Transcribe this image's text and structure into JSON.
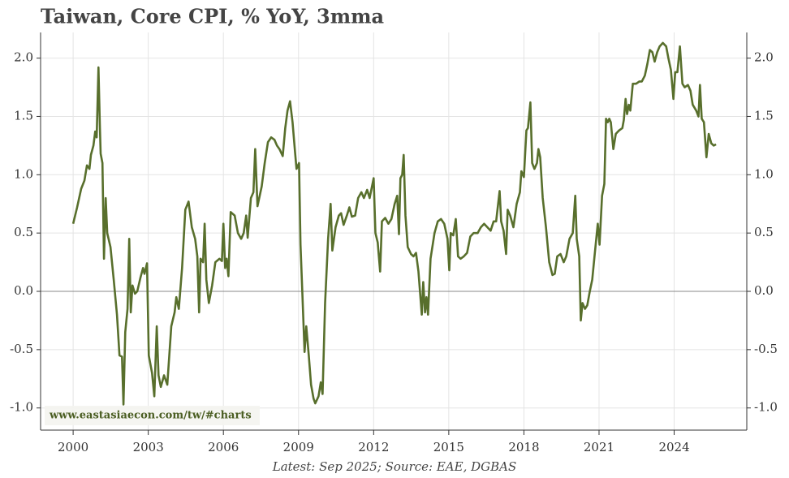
{
  "chart_data": {
    "type": "line",
    "title": "Taiwan, Core CPI, % YoY, 3mma",
    "caption": "Latest: Sep 2025; Source: EAE, DGBAS",
    "annotation": "www.eastasiaecon.com/tw/#charts",
    "grid": true,
    "xlim": [
      1998.7,
      2026.9
    ],
    "xticks": [
      2000,
      2003,
      2006,
      2009,
      2012,
      2015,
      2018,
      2021,
      2024
    ],
    "ylim": [
      -1.19,
      2.22
    ],
    "yticks": [
      {
        "value": -1,
        "label": "-1.0"
      },
      -0.5,
      {
        "value": 0,
        "label": "0.0"
      },
      0.5,
      {
        "value": 1,
        "label": "1.0"
      },
      1.5,
      {
        "value": 2,
        "label": "2.0"
      }
    ],
    "x": [
      2000.0,
      2000.16,
      2000.32,
      2000.45,
      2000.55,
      2000.65,
      2000.71,
      2000.81,
      2000.88,
      2000.94,
      2001.01,
      2001.07,
      2001.1,
      2001.17,
      2001.23,
      2001.3,
      2001.36,
      2001.49,
      2001.62,
      2001.75,
      2001.85,
      2001.95,
      2002.01,
      2002.08,
      2002.17,
      2002.24,
      2002.3,
      2002.37,
      2002.47,
      2002.56,
      2002.69,
      2002.79,
      2002.85,
      2002.95,
      2003.02,
      2003.15,
      2003.24,
      2003.34,
      2003.41,
      2003.5,
      2003.63,
      2003.76,
      2003.92,
      2004.05,
      2004.12,
      2004.22,
      2004.35,
      2004.48,
      2004.61,
      2004.74,
      2004.87,
      2004.96,
      2005.03,
      2005.09,
      2005.19,
      2005.25,
      2005.32,
      2005.42,
      2005.55,
      2005.68,
      2005.84,
      2005.94,
      2006.0,
      2006.07,
      2006.13,
      2006.2,
      2006.29,
      2006.45,
      2006.58,
      2006.71,
      2006.81,
      2006.91,
      2006.97,
      2007.1,
      2007.2,
      2007.27,
      2007.36,
      2007.53,
      2007.65,
      2007.78,
      2007.91,
      2008.04,
      2008.14,
      2008.24,
      2008.37,
      2008.47,
      2008.56,
      2008.66,
      2008.76,
      2008.86,
      2008.92,
      2009.02,
      2009.08,
      2009.15,
      2009.24,
      2009.31,
      2009.41,
      2009.5,
      2009.6,
      2009.67,
      2009.8,
      2009.89,
      2009.96,
      2010.06,
      2010.18,
      2010.28,
      2010.35,
      2010.48,
      2010.61,
      2010.7,
      2010.8,
      2010.93,
      2011.03,
      2011.13,
      2011.26,
      2011.38,
      2011.51,
      2011.61,
      2011.74,
      2011.84,
      2012.0,
      2012.07,
      2012.16,
      2012.26,
      2012.33,
      2012.46,
      2012.59,
      2012.71,
      2012.84,
      2012.94,
      2013.01,
      2013.07,
      2013.14,
      2013.2,
      2013.27,
      2013.36,
      2013.49,
      2013.59,
      2013.69,
      2013.79,
      2013.92,
      2013.98,
      2014.05,
      2014.11,
      2014.17,
      2014.27,
      2014.43,
      2014.56,
      2014.69,
      2014.82,
      2014.95,
      2015.02,
      2015.08,
      2015.18,
      2015.28,
      2015.37,
      2015.47,
      2015.6,
      2015.73,
      2015.86,
      2015.99,
      2016.15,
      2016.28,
      2016.41,
      2016.54,
      2016.67,
      2016.79,
      2016.89,
      2017.03,
      2017.09,
      2017.19,
      2017.29,
      2017.35,
      2017.45,
      2017.58,
      2017.71,
      2017.84,
      2017.9,
      2018.0,
      2018.1,
      2018.16,
      2018.26,
      2018.33,
      2018.42,
      2018.52,
      2018.58,
      2018.65,
      2018.75,
      2018.88,
      2019.01,
      2019.14,
      2019.23,
      2019.33,
      2019.46,
      2019.59,
      2019.69,
      2019.82,
      2019.95,
      2020.05,
      2020.11,
      2020.21,
      2020.27,
      2020.34,
      2020.44,
      2020.53,
      2020.63,
      2020.73,
      2020.82,
      2020.95,
      2021.02,
      2021.12,
      2021.21,
      2021.28,
      2021.35,
      2021.41,
      2021.47,
      2021.57,
      2021.67,
      2021.8,
      2021.93,
      2021.99,
      2022.06,
      2022.12,
      2022.19,
      2022.25,
      2022.35,
      2022.48,
      2022.61,
      2022.71,
      2022.83,
      2022.93,
      2023.03,
      2023.13,
      2023.22,
      2023.32,
      2023.42,
      2023.55,
      2023.68,
      2023.77,
      2023.87,
      2023.97,
      2024.04,
      2024.13,
      2024.23,
      2024.33,
      2024.42,
      2024.55,
      2024.65,
      2024.74,
      2024.88,
      2024.97,
      2025.03,
      2025.1,
      2025.19,
      2025.29,
      2025.38,
      2025.48,
      2025.58,
      2025.67
    ],
    "series": [
      {
        "color": "#586f2c",
        "values": [
          0.58,
          0.72,
          0.88,
          0.95,
          1.08,
          1.05,
          1.17,
          1.25,
          1.37,
          1.32,
          1.92,
          1.4,
          1.18,
          1.1,
          0.28,
          0.8,
          0.5,
          0.38,
          0.1,
          -0.2,
          -0.55,
          -0.56,
          -0.97,
          -0.35,
          -0.15,
          0.45,
          -0.18,
          0.05,
          -0.02,
          0.0,
          0.12,
          0.2,
          0.15,
          0.24,
          -0.55,
          -0.7,
          -0.9,
          -0.3,
          -0.72,
          -0.82,
          -0.72,
          -0.8,
          -0.3,
          -0.18,
          -0.05,
          -0.15,
          0.2,
          0.7,
          0.77,
          0.55,
          0.45,
          0.3,
          -0.18,
          0.28,
          0.25,
          0.58,
          0.1,
          -0.1,
          0.05,
          0.25,
          0.28,
          0.26,
          0.58,
          0.2,
          0.28,
          0.13,
          0.68,
          0.65,
          0.5,
          0.45,
          0.5,
          0.65,
          0.46,
          0.8,
          0.85,
          1.22,
          0.73,
          0.9,
          1.1,
          1.28,
          1.32,
          1.3,
          1.25,
          1.22,
          1.16,
          1.4,
          1.55,
          1.63,
          1.45,
          1.2,
          1.05,
          1.1,
          0.4,
          0.0,
          -0.52,
          -0.3,
          -0.55,
          -0.8,
          -0.92,
          -0.96,
          -0.9,
          -0.78,
          -0.88,
          -0.1,
          0.45,
          0.75,
          0.35,
          0.55,
          0.65,
          0.67,
          0.57,
          0.65,
          0.72,
          0.64,
          0.65,
          0.8,
          0.85,
          0.8,
          0.87,
          0.8,
          0.97,
          0.5,
          0.42,
          0.17,
          0.6,
          0.63,
          0.58,
          0.62,
          0.75,
          0.82,
          0.49,
          0.97,
          1.0,
          1.17,
          0.65,
          0.38,
          0.32,
          0.3,
          0.33,
          0.17,
          -0.2,
          0.08,
          -0.18,
          -0.05,
          -0.2,
          0.28,
          0.5,
          0.6,
          0.62,
          0.58,
          0.45,
          0.18,
          0.5,
          0.48,
          0.62,
          0.3,
          0.28,
          0.3,
          0.33,
          0.47,
          0.5,
          0.5,
          0.55,
          0.58,
          0.55,
          0.52,
          0.6,
          0.6,
          0.86,
          0.6,
          0.52,
          0.32,
          0.7,
          0.65,
          0.55,
          0.75,
          0.85,
          1.03,
          0.98,
          1.38,
          1.4,
          1.62,
          1.1,
          1.05,
          1.1,
          1.22,
          1.15,
          0.8,
          0.55,
          0.25,
          0.14,
          0.15,
          0.3,
          0.32,
          0.25,
          0.3,
          0.45,
          0.5,
          0.82,
          0.45,
          0.3,
          -0.25,
          -0.1,
          -0.15,
          -0.12,
          0.0,
          0.1,
          0.3,
          0.58,
          0.4,
          0.82,
          0.92,
          1.48,
          1.45,
          1.48,
          1.45,
          1.22,
          1.35,
          1.38,
          1.4,
          1.47,
          1.65,
          1.52,
          1.6,
          1.55,
          1.78,
          1.78,
          1.8,
          1.8,
          1.85,
          1.95,
          2.07,
          2.05,
          1.97,
          2.05,
          2.1,
          2.13,
          2.1,
          2.0,
          1.9,
          1.65,
          1.88,
          1.88,
          2.1,
          1.78,
          1.75,
          1.77,
          1.72,
          1.6,
          1.55,
          1.5,
          1.77,
          1.48,
          1.45,
          1.15,
          1.35,
          1.27,
          1.25,
          1.26
        ]
      }
    ]
  }
}
